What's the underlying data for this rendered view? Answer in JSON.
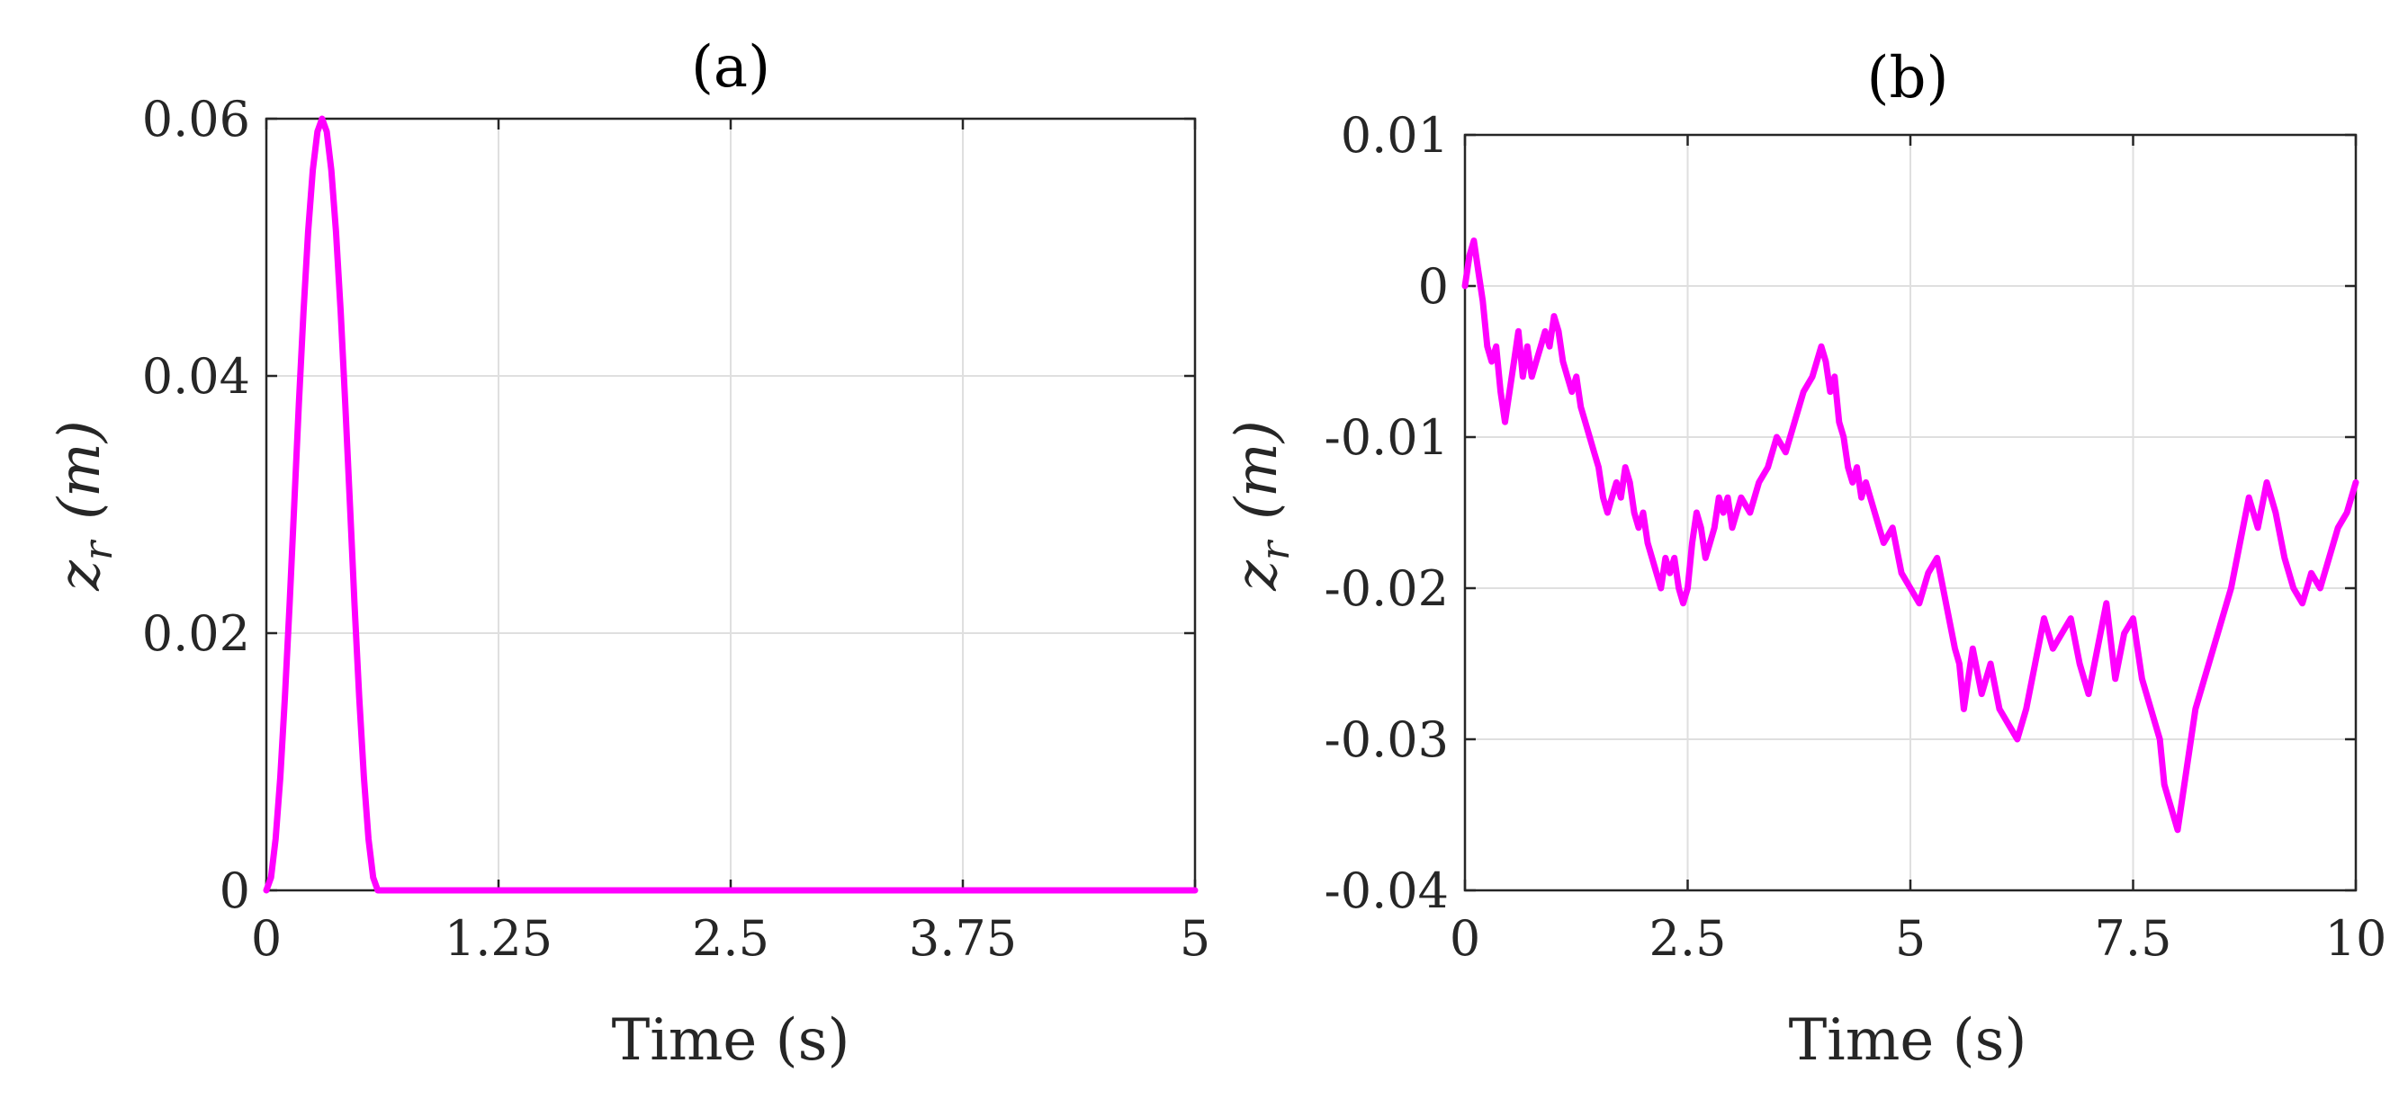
{
  "chart_data": [
    {
      "type": "line",
      "title": "(a)",
      "xlabel": "Time (s)",
      "ylabel": "z_r (m)",
      "ylabel_main": "z",
      "ylabel_sub": "r",
      "ylabel_unit": "(m)",
      "xlim": [
        0,
        5
      ],
      "ylim": [
        0,
        0.06
      ],
      "xticks": [
        0,
        1.25,
        2.5,
        3.75,
        5
      ],
      "xtick_labels": [
        "0",
        "1.25",
        "2.5",
        "3.75",
        "5"
      ],
      "yticks": [
        0,
        0.02,
        0.04,
        0.06
      ],
      "ytick_labels": [
        "0",
        "0.02",
        "0.04",
        "0.06"
      ],
      "grid": true,
      "color": "#ff00ff",
      "series": [
        {
          "x": [
            0,
            0.025,
            0.05,
            0.075,
            0.1,
            0.125,
            0.15,
            0.175,
            0.2,
            0.225,
            0.25,
            0.275,
            0.3,
            0.325,
            0.35,
            0.375,
            0.4,
            0.425,
            0.45,
            0.475,
            0.5,
            0.525,
            0.55,
            0.575,
            0.6,
            0.8,
            1.25,
            2.5,
            3.75,
            5
          ],
          "values": [
            0,
            0.001,
            0.004,
            0.0088,
            0.015,
            0.0222,
            0.03,
            0.0378,
            0.045,
            0.0512,
            0.056,
            0.059,
            0.06,
            0.059,
            0.056,
            0.0512,
            0.045,
            0.0378,
            0.03,
            0.0222,
            0.015,
            0.0088,
            0.004,
            0.001,
            0,
            0,
            0,
            0,
            0,
            0
          ]
        }
      ]
    },
    {
      "type": "line",
      "title": "(b)",
      "xlabel": "Time (s)",
      "ylabel": "z_r (m)",
      "ylabel_main": "z",
      "ylabel_sub": "r",
      "ylabel_unit": "(m)",
      "xlim": [
        0,
        10
      ],
      "ylim": [
        -0.04,
        0.01
      ],
      "xticks": [
        0,
        2.5,
        5,
        7.5,
        10
      ],
      "xtick_labels": [
        "0",
        "2.5",
        "5",
        "7.5",
        "10"
      ],
      "yticks": [
        -0.04,
        -0.03,
        -0.02,
        -0.01,
        0,
        0.01
      ],
      "ytick_labels": [
        "-0.04",
        "-0.03",
        "-0.02",
        "-0.01",
        "0",
        "0.01"
      ],
      "grid": true,
      "color": "#ff00ff",
      "series": [
        {
          "x": [
            0,
            0.05,
            0.1,
            0.15,
            0.2,
            0.25,
            0.3,
            0.35,
            0.4,
            0.45,
            0.5,
            0.55,
            0.6,
            0.65,
            0.7,
            0.75,
            0.8,
            0.85,
            0.9,
            0.95,
            1.0,
            1.05,
            1.1,
            1.15,
            1.2,
            1.25,
            1.3,
            1.35,
            1.4,
            1.45,
            1.5,
            1.55,
            1.6,
            1.65,
            1.7,
            1.75,
            1.8,
            1.85,
            1.9,
            1.95,
            2.0,
            2.05,
            2.1,
            2.15,
            2.2,
            2.25,
            2.3,
            2.35,
            2.4,
            2.45,
            2.5,
            2.55,
            2.6,
            2.65,
            2.7,
            2.75,
            2.8,
            2.85,
            2.9,
            2.95,
            3.0,
            3.1,
            3.2,
            3.3,
            3.4,
            3.5,
            3.6,
            3.7,
            3.8,
            3.9,
            4.0,
            4.05,
            4.1,
            4.15,
            4.2,
            4.25,
            4.3,
            4.35,
            4.4,
            4.45,
            4.5,
            4.6,
            4.7,
            4.8,
            4.9,
            5.0,
            5.1,
            5.2,
            5.3,
            5.4,
            5.5,
            5.55,
            5.6,
            5.65,
            5.7,
            5.8,
            5.9,
            6.0,
            6.1,
            6.2,
            6.3,
            6.4,
            6.5,
            6.6,
            6.7,
            6.8,
            6.9,
            7.0,
            7.1,
            7.2,
            7.3,
            7.4,
            7.5,
            7.6,
            7.7,
            7.8,
            7.85,
            7.9,
            7.95,
            8.0,
            8.1,
            8.2,
            8.3,
            8.4,
            8.5,
            8.6,
            8.7,
            8.8,
            8.9,
            9.0,
            9.1,
            9.2,
            9.3,
            9.4,
            9.5,
            9.6,
            9.7,
            9.8,
            9.9,
            10.0
          ],
          "values": [
            0,
            0.002,
            0.003,
            0.001,
            -0.001,
            -0.004,
            -0.005,
            -0.004,
            -0.007,
            -0.009,
            -0.007,
            -0.005,
            -0.003,
            -0.006,
            -0.004,
            -0.006,
            -0.005,
            -0.004,
            -0.003,
            -0.004,
            -0.002,
            -0.003,
            -0.005,
            -0.006,
            -0.007,
            -0.006,
            -0.008,
            -0.009,
            -0.01,
            -0.011,
            -0.012,
            -0.014,
            -0.015,
            -0.014,
            -0.013,
            -0.014,
            -0.012,
            -0.013,
            -0.015,
            -0.016,
            -0.015,
            -0.017,
            -0.018,
            -0.019,
            -0.02,
            -0.018,
            -0.019,
            -0.018,
            -0.02,
            -0.021,
            -0.02,
            -0.017,
            -0.015,
            -0.016,
            -0.018,
            -0.017,
            -0.016,
            -0.014,
            -0.015,
            -0.014,
            -0.016,
            -0.014,
            -0.015,
            -0.013,
            -0.012,
            -0.01,
            -0.011,
            -0.009,
            -0.007,
            -0.006,
            -0.004,
            -0.005,
            -0.007,
            -0.006,
            -0.009,
            -0.01,
            -0.012,
            -0.013,
            -0.012,
            -0.014,
            -0.013,
            -0.015,
            -0.017,
            -0.016,
            -0.019,
            -0.02,
            -0.021,
            -0.019,
            -0.018,
            -0.021,
            -0.024,
            -0.025,
            -0.028,
            -0.026,
            -0.024,
            -0.027,
            -0.025,
            -0.028,
            -0.029,
            -0.03,
            -0.028,
            -0.025,
            -0.022,
            -0.024,
            -0.023,
            -0.022,
            -0.025,
            -0.027,
            -0.024,
            -0.021,
            -0.026,
            -0.023,
            -0.022,
            -0.026,
            -0.028,
            -0.03,
            -0.033,
            -0.034,
            -0.035,
            -0.036,
            -0.032,
            -0.028,
            -0.026,
            -0.024,
            -0.022,
            -0.02,
            -0.017,
            -0.014,
            -0.016,
            -0.013,
            -0.015,
            -0.018,
            -0.02,
            -0.021,
            -0.019,
            -0.02,
            -0.018,
            -0.016,
            -0.015,
            -0.013
          ]
        }
      ]
    }
  ]
}
